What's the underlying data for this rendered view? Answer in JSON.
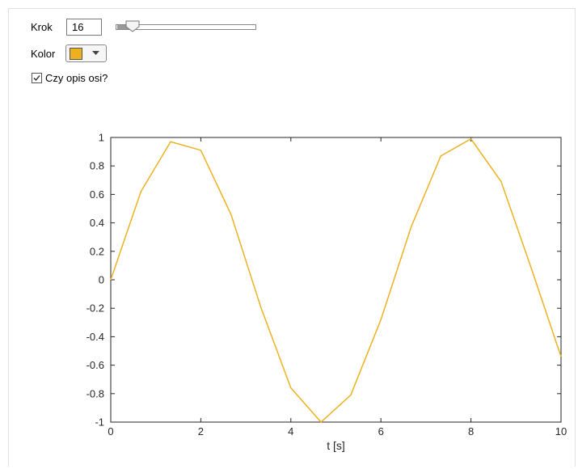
{
  "controls": {
    "step_label": "Krok",
    "step_value": "16",
    "color_label": "Kolor",
    "axis_checkbox": {
      "label": "Czy opis osi?",
      "checked": true
    }
  },
  "chart_data": {
    "type": "line",
    "xlabel": "t [s]",
    "x": [
      0,
      0.67,
      1.33,
      2,
      2.67,
      3.33,
      4,
      4.67,
      5.33,
      6,
      6.67,
      7.33,
      8,
      8.67,
      9.33,
      10
    ],
    "values": [
      0,
      0.62,
      0.97,
      0.91,
      0.46,
      -0.19,
      -0.76,
      -1.0,
      -0.81,
      -0.28,
      0.37,
      0.87,
      0.99,
      0.69,
      0.09,
      -0.54
    ],
    "color": "#EDB120",
    "xlim": [
      0,
      10
    ],
    "xticks": [
      0,
      2,
      4,
      6,
      8,
      10
    ],
    "ylim": [
      -1,
      1
    ],
    "yticks": [
      -1,
      -0.8,
      -0.6,
      -0.4,
      -0.2,
      0,
      0.2,
      0.4,
      0.6,
      0.8,
      1
    ]
  }
}
